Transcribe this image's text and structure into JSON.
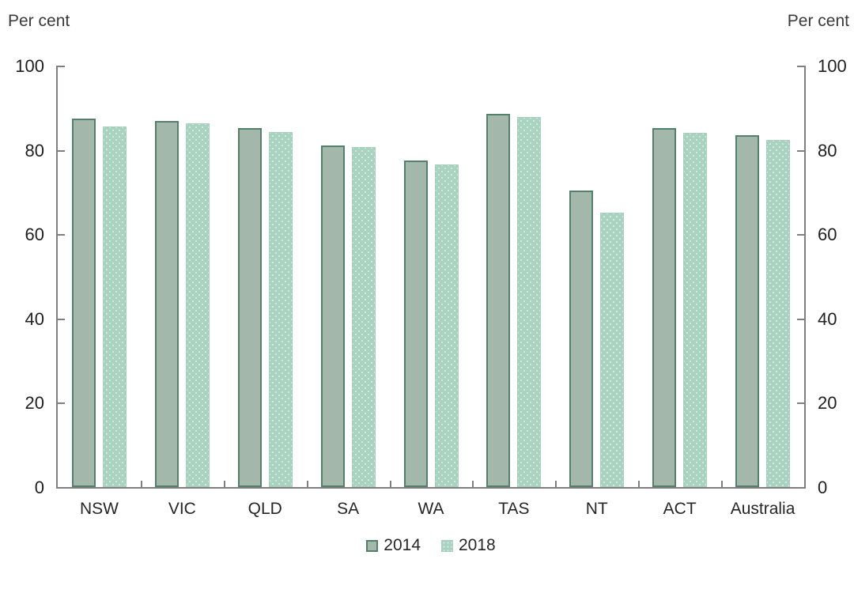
{
  "page": {
    "background": "#ffffff"
  },
  "chart_data": {
    "type": "bar",
    "title": "",
    "xlabel": "",
    "ylabel": "Per cent",
    "ylabel_right": "Per cent",
    "ylim": [
      0,
      100
    ],
    "y_ticks": [
      0,
      20,
      40,
      60,
      80,
      100
    ],
    "grid": false,
    "legend_position": "bottom",
    "axis_color": "#7f7f7f",
    "text_color": "#262626",
    "categories": [
      "NSW",
      "VIC",
      "QLD",
      "SA",
      "WA",
      "TAS",
      "NT",
      "ACT",
      "Australia"
    ],
    "series": [
      {
        "name": "2014",
        "fill": "#a3b7ab",
        "border": "#54806b",
        "pattern": "solid",
        "values": [
          87.4,
          86.9,
          85.2,
          81.1,
          77.4,
          88.5,
          70.3,
          85.2,
          83.5
        ]
      },
      {
        "name": "2018",
        "fill": "#a9d3c0",
        "border": "#9fcab8",
        "pattern": "dots",
        "values": [
          85.5,
          86.3,
          84.3,
          80.6,
          76.6,
          87.8,
          65.1,
          84.0,
          82.3
        ]
      }
    ]
  }
}
